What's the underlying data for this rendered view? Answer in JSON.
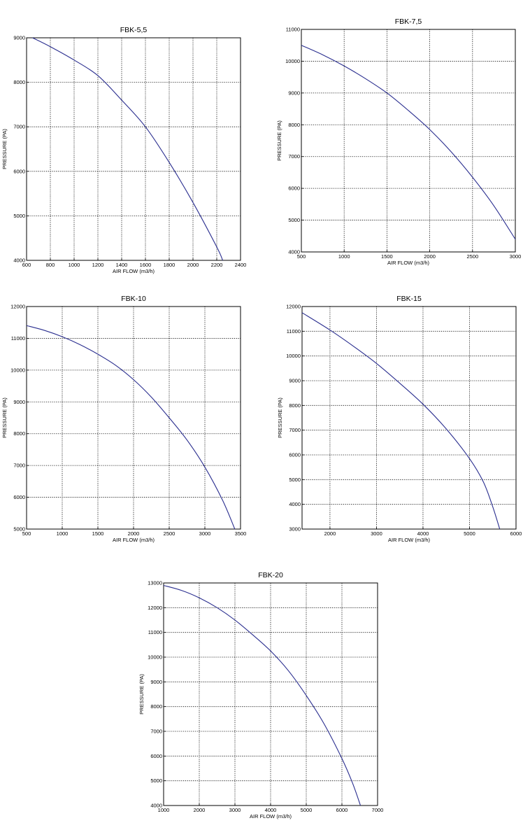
{
  "chart_data": [
    {
      "type": "line",
      "title": "FBK-5,5",
      "xlabel": "AIR FLOW (m3/h)",
      "ylabel": "PRESSURE (PA)",
      "xlim": [
        600,
        2400
      ],
      "ylim": [
        4000,
        9000
      ],
      "xticks": [
        600,
        800,
        1000,
        1200,
        1400,
        1600,
        1800,
        2000,
        2200,
        2400
      ],
      "yticks": [
        4000,
        5000,
        6000,
        7000,
        8000,
        9000
      ],
      "grid": true,
      "series": [
        {
          "x": [
            650,
            800,
            1000,
            1200,
            1400,
            1600,
            1800,
            2000,
            2200,
            2250
          ],
          "y": [
            9000,
            8800,
            8500,
            8150,
            7600,
            7000,
            6200,
            5300,
            4300,
            4000
          ]
        }
      ]
    },
    {
      "type": "line",
      "title": "FBK-7,5",
      "xlabel": "AIR FLOW (m3/h)",
      "ylabel": "PRESSURE (PA)",
      "xlim": [
        500,
        3000
      ],
      "ylim": [
        4000,
        11000
      ],
      "xticks": [
        500,
        1000,
        1500,
        2000,
        2500,
        3000
      ],
      "yticks": [
        4000,
        5000,
        6000,
        7000,
        8000,
        9000,
        10000,
        11000
      ],
      "grid": true,
      "series": [
        {
          "x": [
            500,
            750,
            1000,
            1250,
            1500,
            1750,
            2000,
            2250,
            2500,
            2750,
            3000
          ],
          "y": [
            10500,
            10200,
            9850,
            9450,
            9000,
            8450,
            7850,
            7150,
            6350,
            5450,
            4400
          ]
        }
      ]
    },
    {
      "type": "line",
      "title": "FBK-10",
      "xlabel": "AIR FLOW (m3/h)",
      "ylabel": "PRESSURE (PA)",
      "xlim": [
        500,
        3500
      ],
      "ylim": [
        5000,
        12000
      ],
      "xticks": [
        500,
        1000,
        1500,
        2000,
        2500,
        3000,
        3500
      ],
      "yticks": [
        5000,
        6000,
        7000,
        8000,
        9000,
        10000,
        11000,
        12000
      ],
      "grid": true,
      "series": [
        {
          "x": [
            500,
            750,
            1000,
            1250,
            1500,
            1750,
            2000,
            2250,
            2500,
            2750,
            3000,
            3250,
            3420
          ],
          "y": [
            11400,
            11250,
            11050,
            10800,
            10500,
            10150,
            9700,
            9150,
            8500,
            7800,
            6950,
            5900,
            5000
          ]
        }
      ]
    },
    {
      "type": "line",
      "title": "FBK-15",
      "xlabel": "AIR FLOW (m3/h)",
      "ylabel": "PRESSURE (PA)",
      "xlim": [
        1400,
        6000
      ],
      "ylim": [
        3000,
        12000
      ],
      "xticks": [
        2000,
        3000,
        4000,
        5000,
        6000
      ],
      "yticks": [
        3000,
        4000,
        5000,
        6000,
        7000,
        8000,
        9000,
        10000,
        11000,
        12000
      ],
      "grid": true,
      "series": [
        {
          "x": [
            1400,
            2000,
            2500,
            3000,
            3500,
            4000,
            4500,
            5000,
            5300,
            5500,
            5650
          ],
          "y": [
            11750,
            11050,
            10400,
            9700,
            8900,
            8050,
            7050,
            5850,
            4900,
            3900,
            3000
          ]
        }
      ]
    },
    {
      "type": "line",
      "title": "FBK-20",
      "xlabel": "AIR FLOW (m3/h)",
      "ylabel": "PRESSURE (PA)",
      "xlim": [
        1000,
        7000
      ],
      "ylim": [
        4000,
        13000
      ],
      "xticks": [
        1000,
        2000,
        3000,
        4000,
        5000,
        6000,
        7000
      ],
      "yticks": [
        4000,
        5000,
        6000,
        7000,
        8000,
        9000,
        10000,
        11000,
        12000,
        13000
      ],
      "grid": true,
      "series": [
        {
          "x": [
            1000,
            1500,
            2000,
            2500,
            3000,
            3500,
            4000,
            4500,
            5000,
            5500,
            6000,
            6300,
            6520
          ],
          "y": [
            12900,
            12700,
            12400,
            12000,
            11500,
            10900,
            10250,
            9450,
            8450,
            7300,
            5900,
            4900,
            4000
          ]
        }
      ]
    }
  ]
}
